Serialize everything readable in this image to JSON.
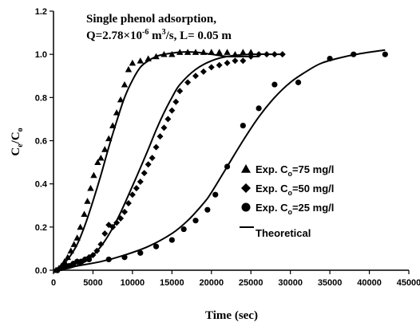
{
  "chart_data": {
    "type": "scatter",
    "title_line1": "Single phenol adsorption,",
    "title_line2_prefix": "Q=2.78×10",
    "title_line2_exp": "-6",
    "title_line2_mid": " m",
    "title_line2_exp2": "3",
    "title_line2_suffix": "/s, L= 0.05 m",
    "xlabel": "Time (sec)",
    "ylabel_main": "C",
    "ylabel_sub1": "e",
    "ylabel_sep": "/C",
    "ylabel_sub2": "o",
    "xlim": [
      0,
      45000
    ],
    "ylim": [
      0,
      1.2
    ],
    "xticks": [
      0,
      5000,
      10000,
      15000,
      20000,
      25000,
      30000,
      35000,
      40000,
      45000
    ],
    "yticks": [
      0.0,
      0.2,
      0.4,
      0.6,
      0.8,
      1.0,
      1.2
    ],
    "legend": [
      {
        "marker": "triangle",
        "prefix": "Exp. C",
        "sub": "o",
        "suffix": "=75 mg/l"
      },
      {
        "marker": "diamond",
        "prefix": "Exp. C",
        "sub": "o",
        "suffix": "=50 mg/l"
      },
      {
        "marker": "circle",
        "prefix": "Exp. C",
        "sub": "o",
        "suffix": "=25 mg/l"
      },
      {
        "marker": "line",
        "prefix": "Theoretical",
        "sub": "",
        "suffix": ""
      }
    ],
    "series": [
      {
        "marker": "triangle",
        "points": [
          [
            300,
            0.0
          ],
          [
            700,
            0.01
          ],
          [
            1000,
            0.02
          ],
          [
            1400,
            0.04
          ],
          [
            1800,
            0.06
          ],
          [
            2200,
            0.09
          ],
          [
            2600,
            0.12
          ],
          [
            3000,
            0.15
          ],
          [
            3400,
            0.2
          ],
          [
            3900,
            0.26
          ],
          [
            4300,
            0.32
          ],
          [
            4700,
            0.38
          ],
          [
            5100,
            0.44
          ],
          [
            5600,
            0.5
          ],
          [
            6000,
            0.52
          ],
          [
            6500,
            0.56
          ],
          [
            7000,
            0.61
          ],
          [
            7500,
            0.67
          ],
          [
            8000,
            0.73
          ],
          [
            8500,
            0.79
          ],
          [
            9000,
            0.86
          ],
          [
            9500,
            0.93
          ],
          [
            10000,
            0.96
          ],
          [
            11000,
            0.97
          ],
          [
            12000,
            0.98
          ],
          [
            13000,
            0.99
          ],
          [
            14000,
            1.0
          ],
          [
            15000,
            1.0
          ],
          [
            16000,
            1.01
          ],
          [
            17000,
            1.01
          ],
          [
            18000,
            1.01
          ],
          [
            19000,
            1.01
          ],
          [
            20000,
            1.01
          ],
          [
            21000,
            1.01
          ],
          [
            22000,
            1.01
          ],
          [
            23000,
            1.0
          ],
          [
            24000,
            1.01
          ],
          [
            25000,
            1.01
          ]
        ]
      },
      {
        "marker": "diamond",
        "points": [
          [
            500,
            0.0
          ],
          [
            1000,
            0.01
          ],
          [
            1500,
            0.02
          ],
          [
            2000,
            0.02
          ],
          [
            2500,
            0.03
          ],
          [
            3000,
            0.04
          ],
          [
            3500,
            0.04
          ],
          [
            4000,
            0.05
          ],
          [
            4500,
            0.06
          ],
          [
            5000,
            0.07
          ],
          [
            5500,
            0.09
          ],
          [
            6000,
            0.12
          ],
          [
            6500,
            0.17
          ],
          [
            7000,
            0.21
          ],
          [
            7500,
            0.2
          ],
          [
            8000,
            0.22
          ],
          [
            8500,
            0.24
          ],
          [
            9000,
            0.27
          ],
          [
            9500,
            0.31
          ],
          [
            10000,
            0.35
          ],
          [
            10500,
            0.38
          ],
          [
            11000,
            0.41
          ],
          [
            11500,
            0.45
          ],
          [
            12000,
            0.49
          ],
          [
            12500,
            0.52
          ],
          [
            13000,
            0.57
          ],
          [
            13500,
            0.62
          ],
          [
            14000,
            0.66
          ],
          [
            14500,
            0.7
          ],
          [
            15000,
            0.74
          ],
          [
            15500,
            0.78
          ],
          [
            16000,
            0.83
          ],
          [
            17000,
            0.87
          ],
          [
            18000,
            0.9
          ],
          [
            19000,
            0.92
          ],
          [
            20000,
            0.94
          ],
          [
            21000,
            0.95
          ],
          [
            22000,
            0.96
          ],
          [
            23000,
            0.97
          ],
          [
            24000,
            0.97
          ],
          [
            25000,
            0.99
          ],
          [
            26000,
            1.0
          ],
          [
            27000,
            1.0
          ],
          [
            28000,
            1.0
          ],
          [
            29000,
            1.0
          ]
        ]
      },
      {
        "marker": "circle",
        "points": [
          [
            500,
            0.0
          ],
          [
            1000,
            0.01
          ],
          [
            1500,
            0.02
          ],
          [
            2000,
            0.02
          ],
          [
            2500,
            0.03
          ],
          [
            3000,
            0.04
          ],
          [
            3500,
            0.04
          ],
          [
            4000,
            0.05
          ],
          [
            4500,
            0.05
          ],
          [
            7000,
            0.05
          ],
          [
            9000,
            0.06
          ],
          [
            11000,
            0.08
          ],
          [
            13000,
            0.11
          ],
          [
            15000,
            0.14
          ],
          [
            16500,
            0.19
          ],
          [
            18000,
            0.23
          ],
          [
            19500,
            0.28
          ],
          [
            20500,
            0.35
          ],
          [
            22000,
            0.48
          ],
          [
            24000,
            0.67
          ],
          [
            26000,
            0.75
          ],
          [
            28000,
            0.86
          ],
          [
            31000,
            0.87
          ],
          [
            35000,
            0.98
          ],
          [
            38000,
            1.0
          ],
          [
            42000,
            1.0
          ]
        ]
      }
    ],
    "theoretical": [
      {
        "points": [
          [
            0,
            0.0
          ],
          [
            1000,
            0.02
          ],
          [
            2000,
            0.06
          ],
          [
            3000,
            0.12
          ],
          [
            4000,
            0.21
          ],
          [
            5000,
            0.32
          ],
          [
            6000,
            0.44
          ],
          [
            7000,
            0.57
          ],
          [
            8000,
            0.69
          ],
          [
            9000,
            0.8
          ],
          [
            10000,
            0.88
          ],
          [
            11000,
            0.94
          ],
          [
            12000,
            0.97
          ],
          [
            13000,
            0.99
          ],
          [
            14000,
            1.0
          ],
          [
            16000,
            1.01
          ],
          [
            18000,
            1.01
          ],
          [
            20000,
            1.0
          ],
          [
            22000,
            0.99
          ],
          [
            24000,
            0.99
          ],
          [
            26000,
            0.99
          ]
        ]
      },
      {
        "points": [
          [
            0,
            0.0
          ],
          [
            2000,
            0.01
          ],
          [
            4000,
            0.04
          ],
          [
            6000,
            0.11
          ],
          [
            8000,
            0.23
          ],
          [
            10000,
            0.39
          ],
          [
            12000,
            0.56
          ],
          [
            13000,
            0.65
          ],
          [
            14000,
            0.73
          ],
          [
            15000,
            0.8
          ],
          [
            16000,
            0.86
          ],
          [
            18000,
            0.93
          ],
          [
            20000,
            0.97
          ],
          [
            22000,
            0.99
          ],
          [
            25000,
            1.0
          ],
          [
            29000,
            1.0
          ]
        ]
      },
      {
        "points": [
          [
            0,
            0.0
          ],
          [
            3000,
            0.02
          ],
          [
            6000,
            0.04
          ],
          [
            9000,
            0.07
          ],
          [
            12000,
            0.11
          ],
          [
            15000,
            0.17
          ],
          [
            17000,
            0.23
          ],
          [
            19000,
            0.31
          ],
          [
            20000,
            0.36
          ],
          [
            22000,
            0.48
          ],
          [
            24000,
            0.6
          ],
          [
            26000,
            0.71
          ],
          [
            28000,
            0.8
          ],
          [
            30000,
            0.87
          ],
          [
            32000,
            0.92
          ],
          [
            34000,
            0.96
          ],
          [
            37000,
            0.99
          ],
          [
            40000,
            1.01
          ],
          [
            42000,
            1.02
          ]
        ]
      }
    ]
  }
}
